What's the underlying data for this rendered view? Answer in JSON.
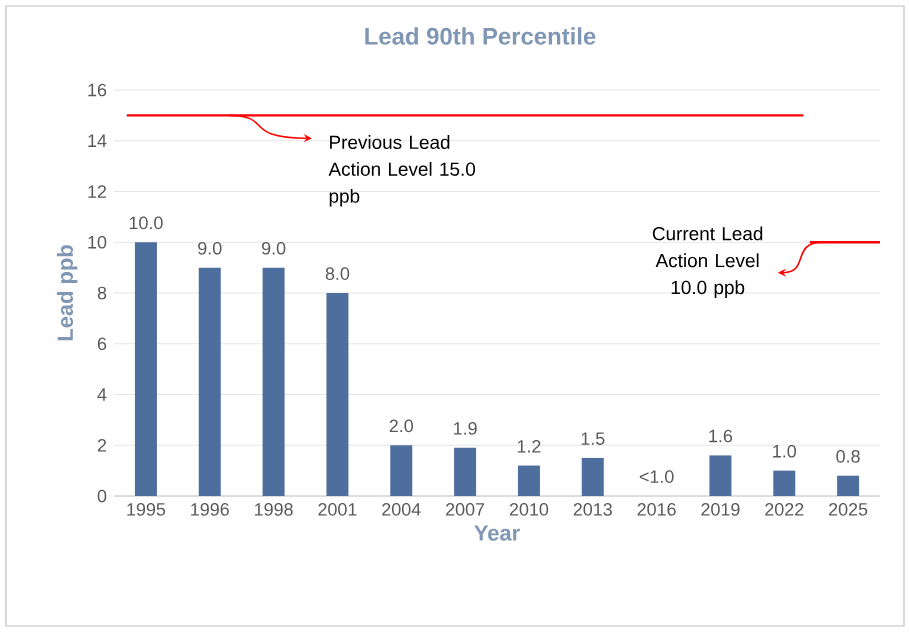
{
  "chart_data": {
    "type": "bar",
    "title": "Lead 90th Percentile",
    "xlabel": "Year",
    "ylabel": "Lead ppb",
    "categories": [
      "1995",
      "1996",
      "1998",
      "2001",
      "2004",
      "2007",
      "2010",
      "2013",
      "2016",
      "2019",
      "2022",
      "2025"
    ],
    "values": [
      10.0,
      9.0,
      9.0,
      8.0,
      2.0,
      1.9,
      1.2,
      1.5,
      null,
      1.6,
      1.0,
      0.8
    ],
    "value_labels": [
      "10.0",
      "9.0",
      "9.0",
      "8.0",
      "2.0",
      "1.9",
      "1.2",
      "1.5",
      "<1.0",
      "1.6",
      "1.0",
      "0.8"
    ],
    "color": "#4e6e9e",
    "ylim": [
      0,
      16
    ],
    "yticks": [
      0,
      2,
      4,
      6,
      8,
      10,
      12,
      14,
      16
    ],
    "grid": "y",
    "ref_lines": [
      {
        "axis": "y",
        "value": 15,
        "label": "Previous Lead Action Level 15.0 ppb",
        "color": "#ff0000"
      },
      {
        "axis": "y",
        "value": 10,
        "label": "Current Lead Action Level 10.0 ppb",
        "color": "#ff0000"
      }
    ]
  }
}
